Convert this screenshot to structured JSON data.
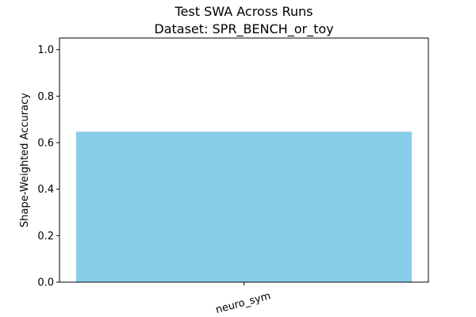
{
  "chart_data": {
    "type": "bar",
    "title_line1": "Test SWA Across Runs",
    "title_line2": "Dataset: SPR_BENCH_or_toy",
    "xlabel": "",
    "ylabel": "Shape-Weighted Accuracy",
    "categories": [
      "neuro_sym"
    ],
    "values": [
      0.647
    ],
    "ylim": [
      0,
      1.05
    ],
    "yticks": [
      "0.0",
      "0.2",
      "0.4",
      "0.6",
      "0.8",
      "1.0"
    ],
    "bar_color": "#87ceeb",
    "grid": false,
    "legend": "none"
  }
}
